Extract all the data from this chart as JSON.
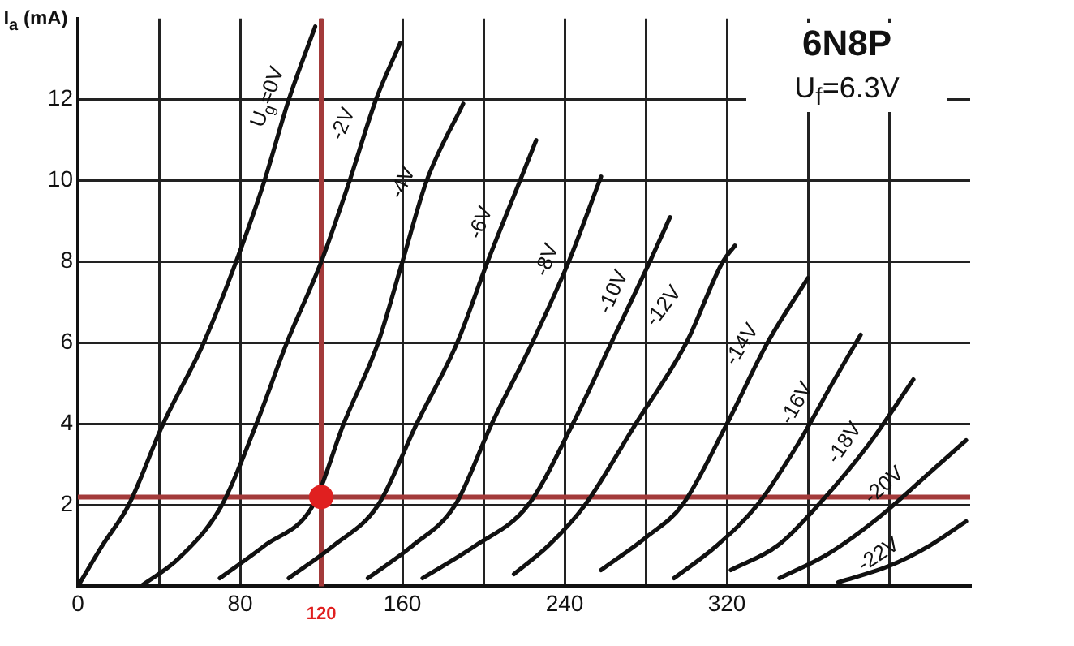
{
  "chart_data": {
    "type": "line",
    "title": "6N8P",
    "subtitle": "U$_{f}$=6.3V",
    "ylabel": "I$_{a}$ (mA)",
    "xlim": [
      0,
      440
    ],
    "xticks": [
      0,
      {
        "value": 40,
        "label": null
      },
      80,
      {
        "value": 120,
        "label": null
      },
      160,
      {
        "value": 200,
        "label": null
      },
      240,
      {
        "value": 280,
        "label": null
      },
      320,
      {
        "value": 360,
        "label": null
      },
      {
        "value": 400,
        "label": null
      }
    ],
    "ylim": [
      0,
      14
    ],
    "yticks": [
      {
        "value": 0,
        "label": null
      },
      2,
      4,
      6,
      8,
      10,
      12
    ],
    "grid": true,
    "legend": false,
    "marker": "none",
    "line_style": "solid",
    "ref_lines": [
      {
        "axis": "x",
        "value": 120,
        "label": "120",
        "color": "#a33a3a"
      },
      {
        "axis": "y",
        "value": 2.2,
        "color": "#a33a3a"
      }
    ],
    "series": [
      {
        "name": "U$_{g}$=0V",
        "color": "#111111",
        "x": [
          0,
          12,
          25,
          42,
          62,
          78,
          92,
          104,
          117
        ],
        "values": [
          0,
          1,
          2,
          4,
          6,
          8,
          10,
          12,
          13.8
        ]
      },
      {
        "name": "-2V",
        "color": "#111111",
        "x": [
          31,
          50,
          71,
          88,
          103,
          120,
          134,
          147,
          159
        ],
        "values": [
          0,
          0.7,
          2,
          4,
          6,
          8,
          10,
          12,
          13.4
        ]
      },
      {
        "name": "-4V",
        "color": "#111111",
        "x": [
          70,
          92,
          116,
          131,
          148,
          160,
          172,
          190
        ],
        "values": [
          0.2,
          1,
          2,
          4,
          6,
          8,
          10,
          11.9
        ]
      },
      {
        "name": "-6V",
        "color": "#111111",
        "x": [
          104,
          126,
          148,
          167,
          187,
          202,
          218,
          226
        ],
        "values": [
          0.2,
          1,
          2,
          4,
          6,
          8,
          10,
          11
        ]
      },
      {
        "name": "-8V",
        "color": "#111111",
        "x": [
          143,
          165,
          186,
          204,
          224,
          242,
          258
        ],
        "values": [
          0.2,
          1,
          2,
          4,
          6,
          8,
          10.1
        ]
      },
      {
        "name": "-10V",
        "color": "#111111",
        "x": [
          170,
          196,
          222,
          244,
          263,
          282,
          292
        ],
        "values": [
          0.2,
          1,
          2,
          4,
          6,
          8,
          9.1
        ]
      },
      {
        "name": "-12V",
        "color": "#111111",
        "x": [
          215,
          232,
          250,
          275,
          300,
          318,
          324
        ],
        "values": [
          0.3,
          1,
          2,
          4,
          6,
          8,
          8.4
        ]
      },
      {
        "name": "-14V",
        "color": "#111111",
        "x": [
          258,
          280,
          298,
          320,
          340,
          360
        ],
        "values": [
          0.4,
          1.2,
          2,
          4,
          6,
          7.6
        ]
      },
      {
        "name": "-16V",
        "color": "#111111",
        "x": [
          294,
          315,
          335,
          355,
          372,
          386
        ],
        "values": [
          0.2,
          1,
          2,
          3.5,
          5,
          6.2
        ]
      },
      {
        "name": "-18V",
        "color": "#111111",
        "x": [
          322,
          345,
          365,
          390,
          412
        ],
        "values": [
          0.4,
          1,
          2,
          3.5,
          5.1
        ]
      },
      {
        "name": "-20V",
        "color": "#111111",
        "x": [
          346,
          370,
          395,
          420,
          438
        ],
        "values": [
          0.2,
          0.8,
          1.7,
          2.8,
          3.6
        ]
      },
      {
        "name": "-22V",
        "color": "#111111",
        "x": [
          375,
          400,
          420,
          438
        ],
        "values": [
          0.1,
          0.5,
          1,
          1.6
        ]
      },
      {
        "type": "scatter",
        "marker": "circle",
        "color": "#e02020",
        "x": [
          120
        ],
        "values": [
          2.2
        ]
      }
    ]
  }
}
